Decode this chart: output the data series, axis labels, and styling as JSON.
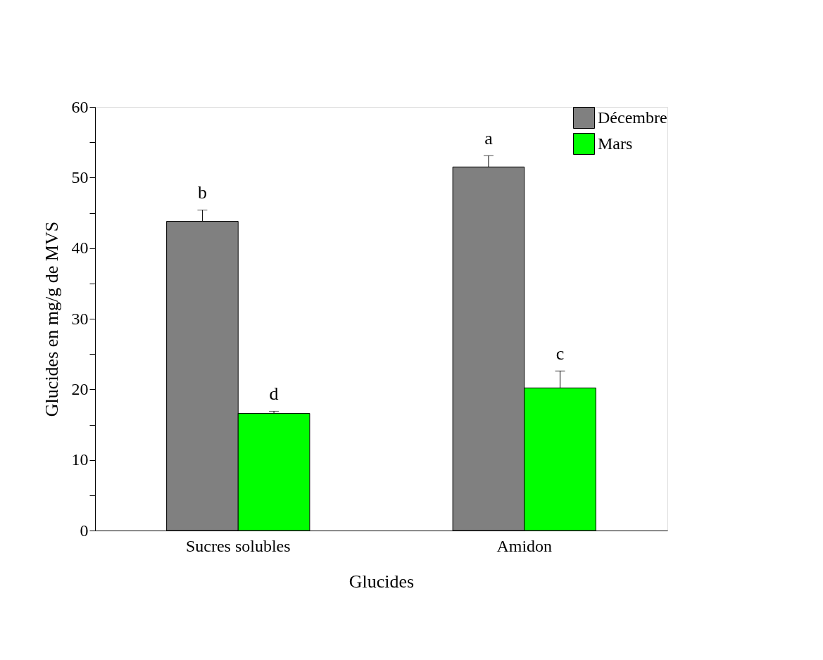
{
  "chart_data": {
    "type": "bar",
    "xlabel": "Glucides",
    "ylabel": "Glucides en mg/g de MVS",
    "categories": [
      "Sucres solubles",
      "Amidon"
    ],
    "series": [
      {
        "name": "Décembre",
        "color": "#808080",
        "values": [
          43.8,
          51.5
        ],
        "errors": [
          1.6,
          1.6
        ],
        "value_labels": [
          "b",
          "a"
        ]
      },
      {
        "name": "Mars",
        "color": "#00ff00",
        "values": [
          16.6,
          20.2
        ],
        "errors": [
          0.3,
          2.4
        ],
        "value_labels": [
          "d",
          "c"
        ]
      }
    ],
    "ylim": [
      0,
      60
    ],
    "yticks": [
      0,
      {
        "value": 5,
        "label": null
      },
      10,
      {
        "value": 15,
        "label": null
      },
      20,
      {
        "value": 25,
        "label": null
      },
      30,
      {
        "value": 35,
        "label": null
      },
      40,
      {
        "value": 45,
        "label": null
      },
      50,
      {
        "value": 55,
        "label": null
      },
      60
    ],
    "legend": "top right",
    "grid": false
  }
}
